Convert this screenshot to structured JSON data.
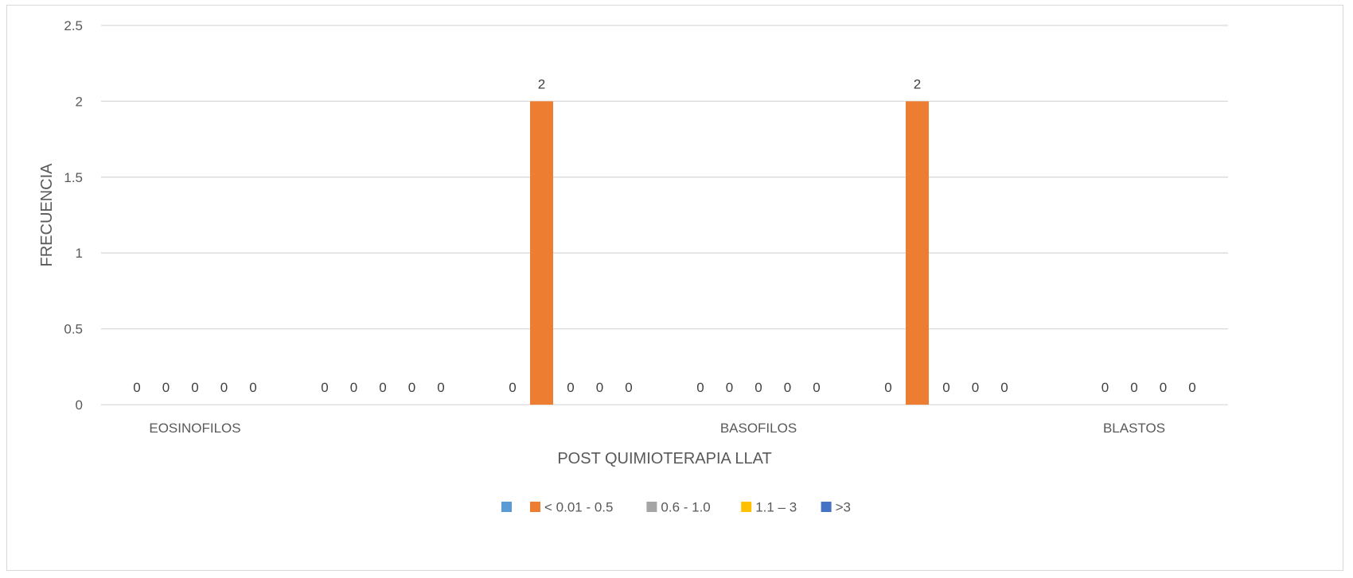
{
  "chart_data": {
    "type": "bar",
    "xlabel": "POST QUIMIOTERAPIA LLAT",
    "ylabel": "FRECUENCIA",
    "ylim": [
      0,
      2.5
    ],
    "yticks": [
      "0",
      "0.5",
      "1",
      "1.5",
      "2",
      "2.5"
    ],
    "grid": true,
    "legend_position": "bottom",
    "categories": [
      "EOSINOFILOS",
      "",
      "",
      "BASOFILOS",
      "",
      "BLASTOS"
    ],
    "series": [
      {
        "name": "",
        "color": "#5b9bd5",
        "values": [
          0,
          0,
          0,
          0,
          0,
          null
        ]
      },
      {
        "name": "< 0.01 - 0.5",
        "color": "#ed7d31",
        "values": [
          0,
          0,
          2,
          0,
          2,
          0
        ]
      },
      {
        "name": "0.6 - 1.0",
        "color": "#a5a5a5",
        "values": [
          0,
          0,
          0,
          0,
          0,
          0
        ]
      },
      {
        "name": "1.1 – 3",
        "color": "#ffc000",
        "values": [
          0,
          0,
          0,
          0,
          0,
          0
        ]
      },
      {
        "name": ">3",
        "color": "#4472c4",
        "values": [
          0,
          0,
          0,
          0,
          0,
          0
        ]
      }
    ]
  }
}
